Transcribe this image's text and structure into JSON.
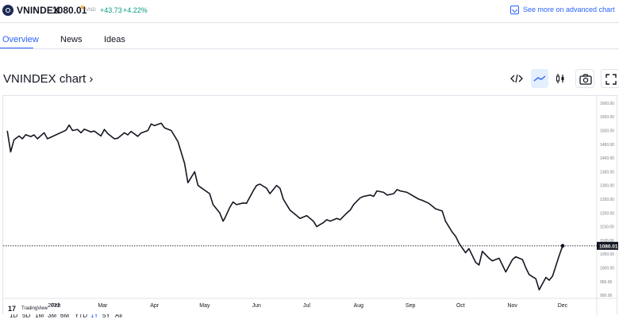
{
  "ticker": {
    "symbol": "VNINDEX",
    "price": "1080.01",
    "currency": "VND",
    "change": "+43.73",
    "change_pct": "+4.22%",
    "logo_icon": "vnindex-logo-icon",
    "up_color": "#089981"
  },
  "advanced_link": {
    "label": "See more on advanced chart",
    "icon": "external-chart-icon",
    "color": "#2962ff"
  },
  "tabs": [
    {
      "label": "Overview",
      "active": true
    },
    {
      "label": "News",
      "active": false
    },
    {
      "label": "Ideas",
      "active": false
    }
  ],
  "chart_header": {
    "title": "VNINDEX chart ›",
    "tools": [
      "embed-code-icon",
      "line-chart-icon",
      "candles-icon",
      "camera-icon",
      "fullscreen-icon"
    ]
  },
  "branding": {
    "text": "TradingView"
  },
  "range_buttons": [
    "1D",
    "5D",
    "1M",
    "3M",
    "6M",
    "YTD",
    "1Y",
    "5Y",
    "All"
  ],
  "chart_data": {
    "type": "line",
    "x": [
      "2022-01-03",
      "2022-01-05",
      "2022-01-07",
      "2022-01-10",
      "2022-01-12",
      "2022-01-14",
      "2022-01-17",
      "2022-01-19",
      "2022-01-21",
      "2022-01-25",
      "2022-01-27",
      "2022-02-07",
      "2022-02-09",
      "2022-02-11",
      "2022-02-14",
      "2022-02-16",
      "2022-02-18",
      "2022-02-22",
      "2022-02-24",
      "2022-02-28",
      "2022-03-02",
      "2022-03-04",
      "2022-03-08",
      "2022-03-10",
      "2022-03-14",
      "2022-03-16",
      "2022-03-18",
      "2022-03-22",
      "2022-03-24",
      "2022-03-28",
      "2022-03-30",
      "2022-04-01",
      "2022-04-05",
      "2022-04-07",
      "2022-04-11",
      "2022-04-13",
      "2022-04-15",
      "2022-04-19",
      "2022-04-21",
      "2022-04-25",
      "2022-04-27",
      "2022-05-04",
      "2022-05-06",
      "2022-05-10",
      "2022-05-12",
      "2022-05-13",
      "2022-05-16",
      "2022-05-18",
      "2022-05-20",
      "2022-05-24",
      "2022-05-26",
      "2022-05-30",
      "2022-06-01",
      "2022-06-03",
      "2022-06-07",
      "2022-06-09",
      "2022-06-13",
      "2022-06-15",
      "2022-06-17",
      "2022-06-21",
      "2022-06-23",
      "2022-06-27",
      "2022-06-29",
      "2022-07-01",
      "2022-07-05",
      "2022-07-07",
      "2022-07-11",
      "2022-07-13",
      "2022-07-15",
      "2022-07-19",
      "2022-07-21",
      "2022-07-25",
      "2022-07-27",
      "2022-07-29",
      "2022-08-02",
      "2022-08-04",
      "2022-08-08",
      "2022-08-10",
      "2022-08-12",
      "2022-08-16",
      "2022-08-18",
      "2022-08-22",
      "2022-08-24",
      "2022-08-26",
      "2022-08-30",
      "2022-09-06",
      "2022-09-08",
      "2022-09-12",
      "2022-09-14",
      "2022-09-16",
      "2022-09-20",
      "2022-09-22",
      "2022-09-26",
      "2022-09-28",
      "2022-09-30",
      "2022-10-04",
      "2022-10-06",
      "2022-10-10",
      "2022-10-12",
      "2022-10-14",
      "2022-10-18",
      "2022-10-20",
      "2022-10-24",
      "2022-10-26",
      "2022-10-28",
      "2022-11-01",
      "2022-11-03",
      "2022-11-07",
      "2022-11-09",
      "2022-11-11",
      "2022-11-15",
      "2022-11-17",
      "2022-11-21",
      "2022-11-23",
      "2022-11-25",
      "2022-11-29",
      "2022-12-01"
    ],
    "values": [
      1499,
      1422,
      1466,
      1480,
      1470,
      1485,
      1478,
      1484,
      1470,
      1492,
      1470,
      1501,
      1520,
      1500,
      1504,
      1492,
      1505,
      1495,
      1498,
      1480,
      1504,
      1489,
      1470,
      1472,
      1492,
      1484,
      1497,
      1479,
      1491,
      1500,
      1524,
      1518,
      1527,
      1510,
      1500,
      1480,
      1460,
      1380,
      1310,
      1350,
      1300,
      1270,
      1230,
      1200,
      1170,
      1180,
      1220,
      1240,
      1230,
      1236,
      1235,
      1280,
      1300,
      1305,
      1290,
      1270,
      1300,
      1290,
      1250,
      1210,
      1200,
      1180,
      1185,
      1190,
      1170,
      1150,
      1165,
      1175,
      1170,
      1180,
      1175,
      1200,
      1210,
      1230,
      1255,
      1260,
      1265,
      1260,
      1280,
      1275,
      1265,
      1270,
      1285,
      1280,
      1275,
      1250,
      1246,
      1235,
      1225,
      1215,
      1207,
      1170,
      1130,
      1115,
      1090,
      1055,
      1070,
      1020,
      1010,
      1060,
      1035,
      1025,
      1035,
      1010,
      985,
      1030,
      1040,
      1030,
      1000,
      975,
      960,
      920,
      965,
      955,
      970,
      1045,
      1080
    ],
    "last_value": "1080.01",
    "y_ticks": [
      "1600.00",
      "1550.00",
      "1500.00",
      "1450.00",
      "1400.00",
      "1350.00",
      "1300.00",
      "1250.00",
      "1200.00",
      "1150.00",
      "1100.00",
      "1050.00",
      "1000.00",
      "950.00",
      "900.00"
    ],
    "x_tick_labels": [
      "2022",
      "Feb",
      "Mar",
      "Apr",
      "May",
      "Jun",
      "Jul",
      "Aug",
      "Sep",
      "Oct",
      "Nov",
      "Dec"
    ],
    "ylim": [
      850,
      1600
    ],
    "xlim": [
      "2022-01-01",
      "2022-12-20"
    ],
    "line_color": "#131722",
    "price_line": "dotted"
  }
}
